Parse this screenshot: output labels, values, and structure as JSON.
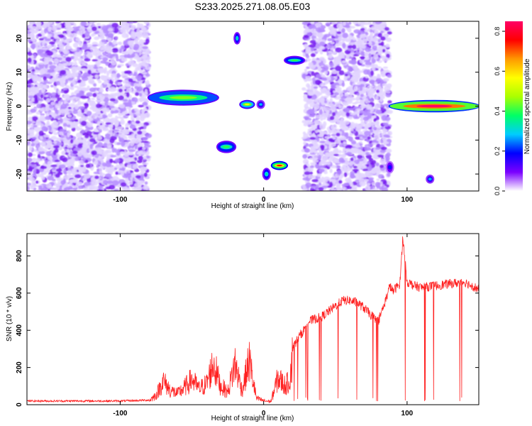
{
  "chart_data": [
    {
      "type": "heatmap",
      "title": "S233.2025.271.08.05.E03",
      "xlabel": "Height of straight line (km)",
      "ylabel": "Frequency (Hz)",
      "xlim": [
        -165,
        150
      ],
      "ylim": [
        -25,
        25
      ],
      "xticks": [
        -100,
        0,
        100
      ],
      "yticks": [
        -20,
        -10,
        0,
        10,
        20
      ],
      "colorbar": {
        "label": "Normalized spectral amplitude",
        "range": [
          0,
          0.85
        ],
        "ticks": [
          0.0,
          0.2,
          0.4,
          0.6,
          0.8
        ],
        "colormap": [
          "#ffffff",
          "#7b00ff",
          "#0000ff",
          "#00ccff",
          "#00ff66",
          "#aaff00",
          "#ffff00",
          "#ff9900",
          "#ff0000",
          "#ff0066"
        ]
      },
      "background_noise_regions": [
        {
          "x": [
            -165,
            -80
          ]
        },
        {
          "x": [
            28,
            88
          ]
        }
      ],
      "features": [
        {
          "x": [
            -80,
            -32
          ],
          "y": [
            1,
            4
          ],
          "peak": 0.45
        },
        {
          "x": [
            -32,
            -20
          ],
          "y": [
            -13,
            -11
          ],
          "peak": 0.4
        },
        {
          "x": [
            -20,
            -17
          ],
          "y": [
            19,
            21
          ],
          "peak": 0.35
        },
        {
          "x": [
            -16,
            -7
          ],
          "y": [
            0,
            1
          ],
          "peak": 0.55
        },
        {
          "x": [
            -4,
            0
          ],
          "y": [
            0,
            1
          ],
          "peak": 0.3
        },
        {
          "x": [
            0,
            4
          ],
          "y": [
            -21,
            -19
          ],
          "peak": 0.35
        },
        {
          "x": [
            6,
            16
          ],
          "y": [
            -18,
            -17
          ],
          "peak": 0.75
        },
        {
          "x": [
            15,
            28
          ],
          "y": [
            13,
            14
          ],
          "peak": 0.4
        },
        {
          "x": [
            86,
            90
          ],
          "y": [
            -19,
            -17
          ],
          "peak": 0.2
        },
        {
          "x": [
            88,
            150
          ],
          "y": [
            -1,
            1
          ],
          "peak": 0.85
        },
        {
          "x": [
            114,
            118
          ],
          "y": [
            -22,
            -21
          ],
          "peak": 0.3
        }
      ]
    },
    {
      "type": "line",
      "title": "",
      "xlabel": "Height of straight line (km)",
      "ylabel": "SNR (10 * v/v)",
      "xlim": [
        -165,
        150
      ],
      "ylim": [
        0,
        920
      ],
      "xticks": [
        -100,
        0,
        100
      ],
      "yticks": [
        0,
        200,
        400,
        600,
        800
      ],
      "line_color": "#ff2020",
      "series": [
        {
          "x": [
            -165,
            -140,
            -120,
            -100,
            -90,
            -80,
            -75,
            -70,
            -65,
            -60,
            -55,
            -50,
            -45,
            -40,
            -35,
            -30,
            -25,
            -20,
            -15,
            -10,
            -5,
            0,
            5,
            10,
            15,
            18,
            20,
            22,
            25,
            28,
            30,
            35,
            40,
            45,
            50,
            55,
            60,
            65,
            70,
            75,
            80,
            85,
            88,
            90,
            95,
            97,
            100,
            105,
            110,
            120,
            130,
            140,
            150
          ],
          "y": [
            20,
            20,
            20,
            20,
            22,
            25,
            60,
            150,
            90,
            70,
            110,
            160,
            100,
            130,
            260,
            120,
            80,
            260,
            90,
            280,
            40,
            25,
            20,
            170,
            120,
            150,
            300,
            330,
            370,
            400,
            440,
            460,
            470,
            500,
            530,
            560,
            560,
            550,
            520,
            480,
            450,
            560,
            640,
            610,
            650,
            900,
            660,
            640,
            630,
            640,
            650,
            660,
            620
          ]
        }
      ]
    }
  ]
}
